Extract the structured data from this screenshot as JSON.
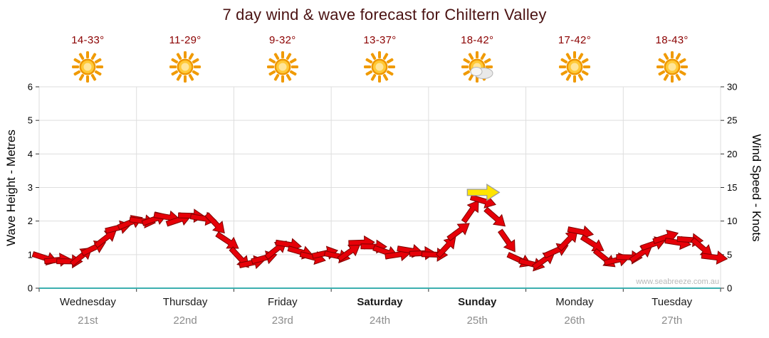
{
  "page": {
    "watermark": "www.seabreeze.com.au"
  },
  "chart_data": {
    "type": "wind_barb_time_series",
    "title": "7 day wind & wave forecast for Chiltern Valley",
    "ylabel_left": "Wave Height - Metres",
    "ylabel_right": "Wind Speed - Knots",
    "y_left_range": [
      0,
      6
    ],
    "y_right_range": [
      0,
      30
    ],
    "y_left_ticks": [
      0,
      1,
      2,
      3,
      4,
      5,
      6
    ],
    "y_right_ticks": [
      0,
      5,
      10,
      15,
      20,
      25,
      30
    ],
    "grid": true,
    "days": [
      {
        "label": "Wednesday",
        "date": "21st",
        "temp": "14-33°",
        "icon": "sunny",
        "bold": false
      },
      {
        "label": "Thursday",
        "date": "22nd",
        "temp": "11-29°",
        "icon": "sunny",
        "bold": false
      },
      {
        "label": "Friday",
        "date": "23rd",
        "temp": "9-32°",
        "icon": "sunny",
        "bold": false
      },
      {
        "label": "Saturday",
        "date": "24th",
        "temp": "13-37°",
        "icon": "sunny",
        "bold": true
      },
      {
        "label": "Sunday",
        "date": "25th",
        "temp": "18-42°",
        "icon": "partly-cloudy",
        "bold": true
      },
      {
        "label": "Monday",
        "date": "26th",
        "temp": "17-42°",
        "icon": "sunny",
        "bold": false
      },
      {
        "label": "Tuesday",
        "date": "27th",
        "temp": "18-43°",
        "icon": "sunny",
        "bold": false
      }
    ],
    "series": [
      {
        "name": "Wind speed (knots)",
        "points_per_day": 8,
        "values": [
          4.5,
          4.2,
          4.0,
          4.8,
          6.0,
          7.5,
          9.0,
          9.8,
          10.0,
          10.3,
          10.6,
          10.2,
          10.8,
          10.4,
          9.6,
          7.0,
          4.5,
          3.8,
          4.5,
          5.8,
          6.5,
          5.4,
          4.6,
          5.2,
          4.8,
          5.4,
          6.8,
          6.2,
          5.4,
          5.0,
          5.6,
          5.2,
          5.0,
          6.2,
          8.5,
          11.5,
          13.0,
          10.5,
          7.0,
          4.2,
          3.6,
          4.2,
          5.6,
          7.2,
          8.4,
          6.6,
          4.4,
          4.2,
          4.6,
          5.2,
          6.6,
          7.6,
          6.8,
          7.2,
          6.0,
          4.6
        ]
      }
    ],
    "annotations": [
      {
        "type": "yellow-arrow",
        "day_index": 4,
        "point_in_day": 4,
        "value_knots": 13.0
      }
    ],
    "colors": {
      "barb_fill": "#e60008",
      "barb_stroke": "#7f0000",
      "annotation_fill": "#ffe400",
      "annotation_stroke": "#9a9a9a",
      "axis": "#3cb0b0",
      "grid": "#dedede",
      "title": "#4a1212",
      "temps": "#8b0000",
      "dates": "#8c8c8c"
    }
  }
}
